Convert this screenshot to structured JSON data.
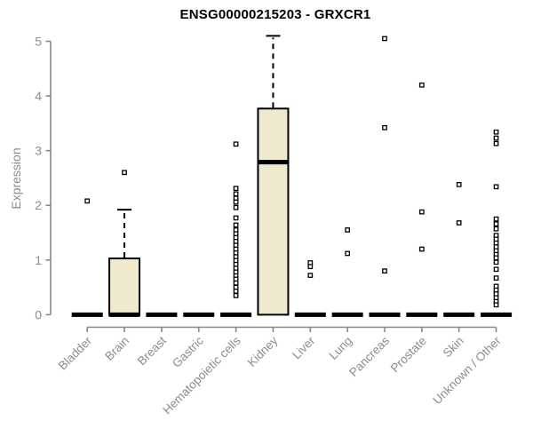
{
  "chart_data": {
    "type": "boxplot",
    "title": "ENSG00000215203 - GRXCR1",
    "ylabel": "Expression",
    "xlabel": "",
    "ylim": [
      0,
      5
    ],
    "yticks": [
      0,
      1,
      2,
      3,
      4,
      5
    ],
    "grid": false,
    "legend": "none",
    "categories": [
      "Bladder",
      "Brain",
      "Breast",
      "Gastric",
      "Hematopoietic cells",
      "Kidney",
      "Liver",
      "Lung",
      "Pancreas",
      "Prostate",
      "Skin",
      "Unknown / Other"
    ],
    "boxes": [
      {
        "label": "Bladder",
        "q1": 0,
        "median": 0,
        "q3": 0,
        "whisker_low": 0,
        "whisker_high": 0,
        "outliers": [
          2.08
        ]
      },
      {
        "label": "Brain",
        "q1": 0,
        "median": 0,
        "q3": 1.03,
        "whisker_low": 0,
        "whisker_high": 1.92,
        "outliers": [
          2.6
        ]
      },
      {
        "label": "Breast",
        "q1": 0,
        "median": 0,
        "q3": 0,
        "whisker_low": 0,
        "whisker_high": 0,
        "outliers": []
      },
      {
        "label": "Gastric",
        "q1": 0,
        "median": 0,
        "q3": 0,
        "whisker_low": 0,
        "whisker_high": 0,
        "outliers": []
      },
      {
        "label": "Hematopoietic cells",
        "q1": 0,
        "median": 0,
        "q3": 0,
        "whisker_low": 0,
        "whisker_high": 0,
        "outliers": [
          3.12,
          2.31,
          2.21,
          2.13,
          2.06,
          1.96,
          1.77,
          1.64,
          1.55,
          1.48,
          1.41,
          1.34,
          1.27,
          1.2,
          1.13,
          1.06,
          0.99,
          0.92,
          0.85,
          0.78,
          0.71,
          0.65,
          0.58,
          0.5,
          0.43,
          0.35
        ]
      },
      {
        "label": "Kidney",
        "q1": 0,
        "median": 2.79,
        "q3": 3.77,
        "whisker_low": 0,
        "whisker_high": 5.1,
        "outliers": []
      },
      {
        "label": "Liver",
        "q1": 0,
        "median": 0,
        "q3": 0,
        "whisker_low": 0,
        "whisker_high": 0,
        "outliers": [
          0.95,
          0.88,
          0.72
        ]
      },
      {
        "label": "Lung",
        "q1": 0,
        "median": 0,
        "q3": 0,
        "whisker_low": 0,
        "whisker_high": 0,
        "outliers": [
          1.55,
          1.12
        ]
      },
      {
        "label": "Pancreas",
        "q1": 0,
        "median": 0,
        "q3": 0,
        "whisker_low": 0,
        "whisker_high": 0,
        "outliers": [
          5.05,
          3.42,
          0.8
        ]
      },
      {
        "label": "Prostate",
        "q1": 0,
        "median": 0,
        "q3": 0,
        "whisker_low": 0,
        "whisker_high": 0,
        "outliers": [
          4.2,
          1.88,
          1.2
        ]
      },
      {
        "label": "Skin",
        "q1": 0,
        "median": 0,
        "q3": 0,
        "whisker_low": 0,
        "whisker_high": 0,
        "outliers": [
          2.38,
          1.68
        ]
      },
      {
        "label": "Unknown / Other",
        "q1": 0,
        "median": 0,
        "q3": 0,
        "whisker_low": 0,
        "whisker_high": 0,
        "outliers": [
          3.34,
          3.23,
          3.13,
          2.34,
          1.75,
          1.66,
          1.57,
          1.45,
          1.38,
          1.31,
          1.24,
          1.17,
          1.1,
          1.04,
          0.96,
          0.83,
          0.67,
          0.52,
          0.45,
          0.38,
          0.31,
          0.24,
          0.18
        ]
      }
    ],
    "colors": {
      "box_fill": "#EFE9CD",
      "box_border": "#000000",
      "median": "#000000",
      "outlier_fill": "#FFFFFF",
      "outlier_border": "#000000",
      "axis": "#888888",
      "tick_text": "#8C8C8C",
      "title": "#000000"
    }
  }
}
